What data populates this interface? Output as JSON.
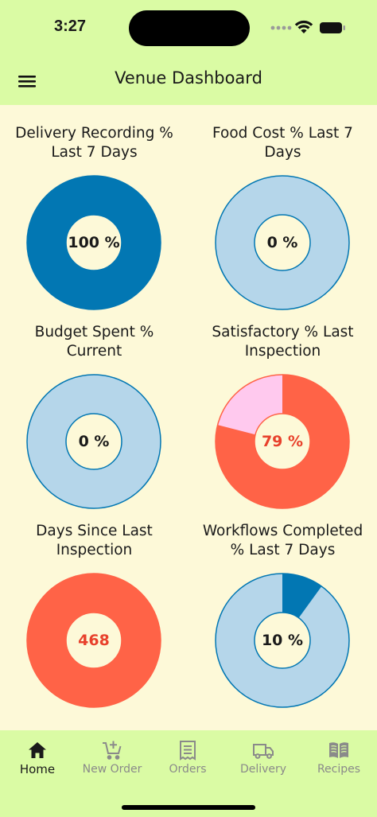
{
  "status_bar": {
    "time": "3:27"
  },
  "header": {
    "title": "Venue Dashboard",
    "menu_icon": "hamburger-icon"
  },
  "colors": {
    "app_bar": "#DAFBA4",
    "background": "#FDF9D8",
    "blue_dark": "#0277B3",
    "blue_light": "#B5D6EA",
    "red": "#FF6347",
    "pink": "#FFC9EE"
  },
  "tiles": [
    {
      "title": "Delivery Recording %\nLast 7 Days",
      "value_text": "100 %",
      "percent": 100,
      "fill": "#0277B3",
      "track": "#B5D6EA",
      "stroke": "#0277B3",
      "text_color": "#1a1a1a"
    },
    {
      "title": "Food Cost % Last 7\nDays",
      "value_text": "0 %",
      "percent": 0,
      "fill": "#0277B3",
      "track": "#B5D6EA",
      "stroke": "#0277B3",
      "text_color": "#1a1a1a"
    },
    {
      "title": "Budget Spent %\nCurrent",
      "value_text": "0 %",
      "percent": 0,
      "fill": "#0277B3",
      "track": "#B5D6EA",
      "stroke": "#0277B3",
      "text_color": "#1a1a1a"
    },
    {
      "title": "Satisfactory % Last\nInspection",
      "value_text": "79 %",
      "percent": 79,
      "fill": "#FF6347",
      "track": "#FFC9EE",
      "stroke": "#FF6347",
      "text_color": "#E8412C"
    },
    {
      "title": "Days Since Last\nInspection",
      "value_text": "468",
      "percent": 100,
      "fill": "#FF6347",
      "track": "#FF6347",
      "stroke": "#FF6347",
      "text_color": "#E8412C"
    },
    {
      "title": "Workflows Completed\n% Last 7 Days",
      "value_text": "10 %",
      "percent": 10,
      "fill": "#0277B3",
      "track": "#B5D6EA",
      "stroke": "#0277B3",
      "text_color": "#1a1a1a"
    }
  ],
  "tabs": [
    {
      "label": "Home",
      "icon": "home-icon",
      "active": true
    },
    {
      "label": "New Order",
      "icon": "cart-add-icon",
      "active": false
    },
    {
      "label": "Orders",
      "icon": "receipt-icon",
      "active": false
    },
    {
      "label": "Delivery",
      "icon": "truck-icon",
      "active": false
    },
    {
      "label": "Recipes",
      "icon": "book-icon",
      "active": false
    }
  ]
}
